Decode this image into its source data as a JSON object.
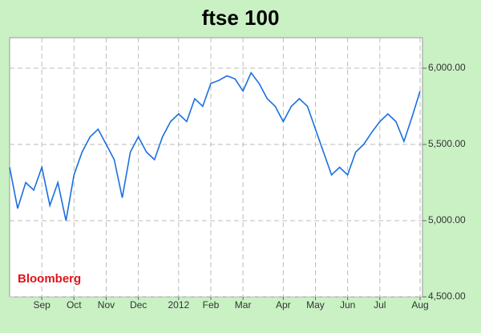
{
  "chart_data": {
    "type": "line",
    "title": "ftse 100",
    "annotation": "Bloomberg",
    "color": "#1a6fe0",
    "grid": true,
    "categories": [
      null,
      null,
      null,
      null,
      "Sep",
      null,
      null,
      null,
      "Oct",
      null,
      null,
      null,
      "Nov",
      null,
      null,
      null,
      "Dec",
      null,
      null,
      null,
      null,
      "2012",
      null,
      null,
      null,
      "Feb",
      null,
      null,
      null,
      "Mar",
      null,
      null,
      null,
      null,
      "Apr",
      null,
      null,
      null,
      "May",
      null,
      null,
      null,
      "Jun",
      null,
      null,
      null,
      "Jul",
      null,
      null,
      null,
      null,
      "Aug"
    ],
    "values": [
      5350,
      5080,
      5250,
      5200,
      5350,
      5100,
      5250,
      5000,
      5300,
      5450,
      5550,
      5600,
      5500,
      5400,
      5150,
      5450,
      5550,
      5450,
      5400,
      5550,
      5650,
      5700,
      5650,
      5800,
      5750,
      5900,
      5920,
      5950,
      5930,
      5850,
      5970,
      5900,
      5800,
      5750,
      5650,
      5750,
      5800,
      5750,
      5600,
      5450,
      5300,
      5350,
      5300,
      5450,
      5500,
      5580,
      5650,
      5700,
      5650,
      5520,
      5680,
      5850
    ],
    "ylim": [
      4500,
      6200
    ],
    "yticks": [
      {
        "value": 4500,
        "label": "4,500.00"
      },
      {
        "value": 5000,
        "label": "5,000.00"
      },
      {
        "value": 5500,
        "label": "5,500.00"
      },
      {
        "value": 6000,
        "label": "6,000.00"
      }
    ]
  }
}
